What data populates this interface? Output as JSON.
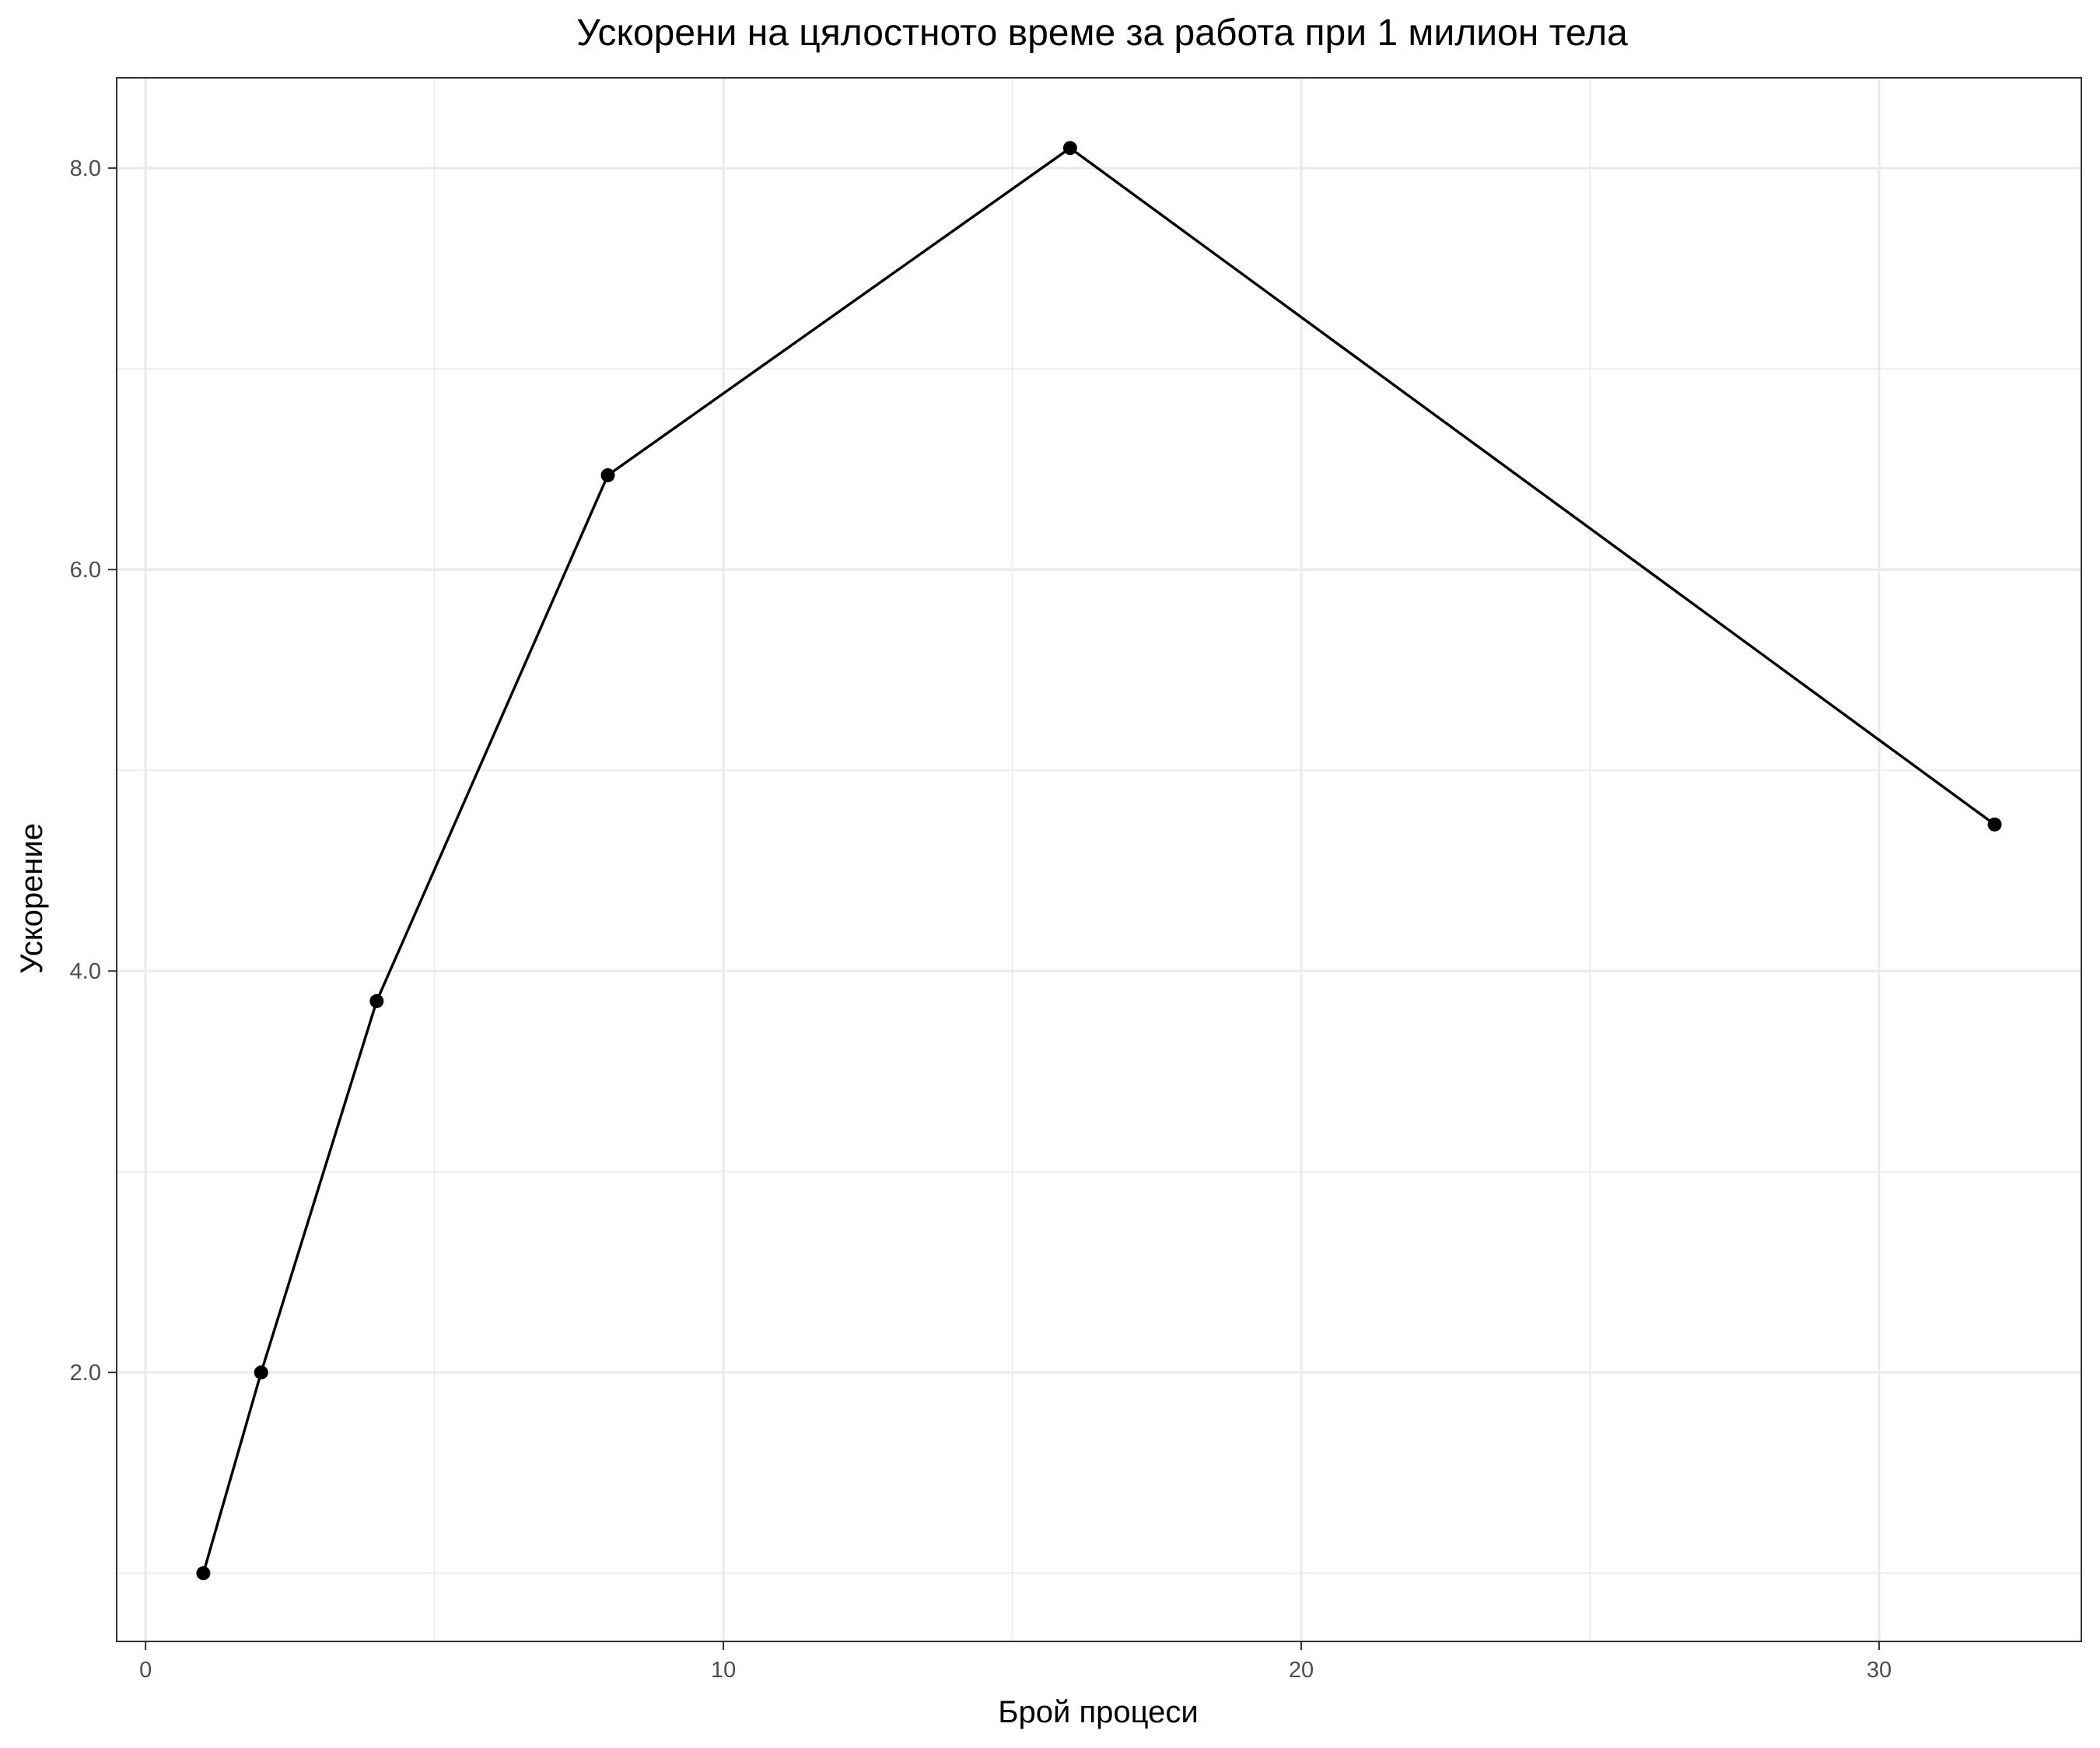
{
  "chart_data": {
    "type": "line",
    "title": "Ускорени на цялостното време за работа при 1 милион тела",
    "xlabel": "Брой процеси",
    "ylabel": "Ускорение",
    "x": [
      1,
      2,
      4,
      8,
      16,
      32
    ],
    "series": [
      {
        "values": [
          1.0,
          2.0,
          3.85,
          6.47,
          8.1,
          4.73
        ]
      }
    ],
    "xlim": [
      -0.5,
      33.5
    ],
    "ylim": [
      0.66,
      8.45
    ],
    "x_ticks": [
      {
        "value": 0,
        "label": "0"
      },
      {
        "value": 10,
        "label": "10"
      },
      {
        "value": 20,
        "label": "20"
      },
      {
        "value": 30,
        "label": "30"
      }
    ],
    "y_ticks": [
      {
        "value": 2,
        "label": "2.0"
      },
      {
        "value": 4,
        "label": "4.0"
      },
      {
        "value": 6,
        "label": "6.0"
      },
      {
        "value": 8,
        "label": "8.0"
      }
    ],
    "x_minor_ticks": [
      5,
      15,
      25
    ],
    "y_minor_ticks": [
      1,
      3,
      5,
      7
    ],
    "grid": true,
    "legend": "none",
    "colors": {
      "line": "#000000",
      "point": "#000000",
      "grid": "#ebebeb",
      "panel_border": "#333333",
      "tick_label": "#4d4d4d",
      "background": "#ffffff"
    }
  }
}
